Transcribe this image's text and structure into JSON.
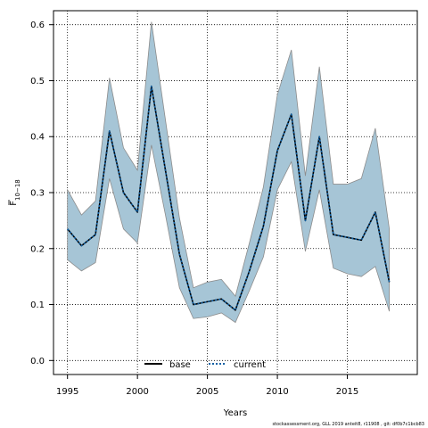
{
  "chart_data": {
    "type": "line",
    "xlabel": "Years",
    "ylabel": {
      "base": "F",
      "subscript": "10−18"
    },
    "xlim": [
      1994,
      2020
    ],
    "ylim": [
      -0.025,
      0.625
    ],
    "xticks": [
      1995,
      2000,
      2005,
      2010,
      2015
    ],
    "yticks": [
      0.0,
      0.1,
      0.2,
      0.3,
      0.4,
      0.5,
      0.6
    ],
    "ytick_labels": [
      "0.0",
      "0.1",
      "0.2",
      "0.3",
      "0.4",
      "0.5",
      "0.6"
    ],
    "grid": true,
    "legend_position": "bottom-center",
    "x": [
      1995,
      1996,
      1997,
      1998,
      1999,
      2000,
      2001,
      2002,
      2003,
      2004,
      2005,
      2006,
      2007,
      2008,
      2009,
      2010,
      2011,
      2012,
      2013,
      2014,
      2015,
      2016,
      2017,
      2018
    ],
    "series": [
      {
        "name": "base",
        "color": "#000000",
        "style": "solid",
        "values": [
          0.235,
          0.205,
          0.225,
          0.41,
          0.3,
          0.265,
          0.49,
          0.34,
          0.19,
          0.1,
          0.105,
          0.11,
          0.09,
          0.16,
          0.24,
          0.375,
          0.44,
          0.25,
          0.4,
          0.225,
          0.22,
          0.215,
          0.265,
          0.14
        ]
      },
      {
        "name": "current",
        "color": "#0e5fa3",
        "style": "dotted",
        "values": [
          0.235,
          0.205,
          0.225,
          0.41,
          0.3,
          0.265,
          0.49,
          0.34,
          0.19,
          0.1,
          0.105,
          0.11,
          0.09,
          0.16,
          0.24,
          0.375,
          0.44,
          0.25,
          0.4,
          0.225,
          0.22,
          0.215,
          0.265,
          0.14
        ]
      }
    ],
    "ribbon": {
      "fill": "#a6c5d6",
      "edge": "#8c8c8c",
      "lower": [
        0.18,
        0.16,
        0.175,
        0.325,
        0.235,
        0.21,
        0.385,
        0.26,
        0.13,
        0.075,
        0.078,
        0.085,
        0.068,
        0.125,
        0.185,
        0.305,
        0.355,
        0.195,
        0.305,
        0.165,
        0.155,
        0.15,
        0.168,
        0.088
      ],
      "upper": [
        0.305,
        0.26,
        0.285,
        0.505,
        0.38,
        0.34,
        0.605,
        0.43,
        0.255,
        0.13,
        0.14,
        0.145,
        0.115,
        0.21,
        0.31,
        0.475,
        0.555,
        0.33,
        0.525,
        0.315,
        0.315,
        0.325,
        0.415,
        0.235
      ]
    }
  },
  "footer": "stockassessment.org, GLL 2019 anteit8, r11908 , git: df0b7c1bcb83"
}
